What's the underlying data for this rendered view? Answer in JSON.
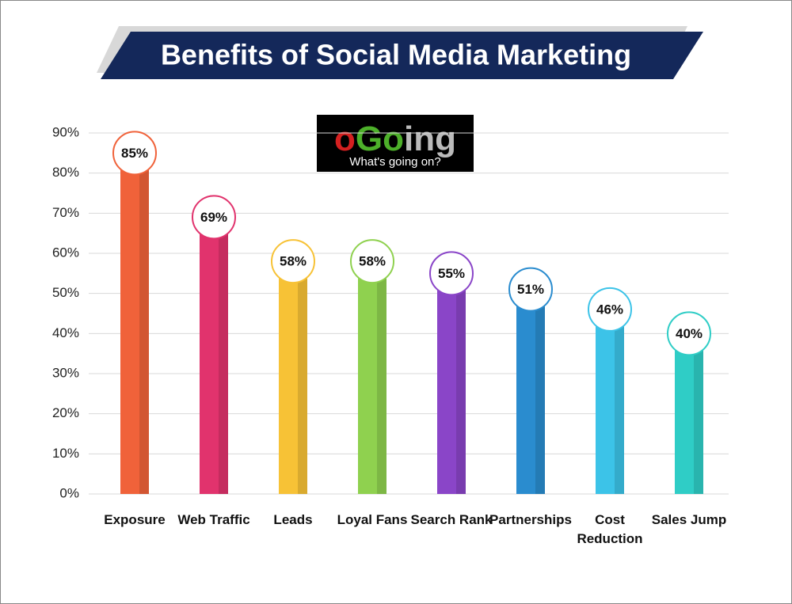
{
  "chart_data": {
    "type": "bar",
    "title": "Benefits of Social Media Marketing",
    "categories": [
      "Exposure",
      "Web Traffic",
      "Leads",
      "Loyal Fans",
      "Search Rank",
      "Partnerships",
      "Cost Reduction",
      "Sales Jump"
    ],
    "values": [
      85,
      69,
      58,
      58,
      55,
      51,
      46,
      40
    ],
    "value_labels": [
      "85%",
      "69%",
      "58%",
      "58%",
      "55%",
      "51%",
      "46%",
      "40%"
    ],
    "colors": [
      "#f0623a",
      "#e1336d",
      "#f7c236",
      "#8fd14f",
      "#8a45c8",
      "#2a8ccf",
      "#3cc3e8",
      "#2fcdc6"
    ],
    "ylim": [
      0,
      90
    ],
    "yticks": [
      {
        "value": 0,
        "label": "0%"
      },
      {
        "value": 10,
        "label": "10%"
      },
      {
        "value": 20,
        "label": "20%"
      },
      {
        "value": 30,
        "label": "30%"
      },
      {
        "value": 40,
        "label": "40%"
      },
      {
        "value": 50,
        "label": "50%"
      },
      {
        "value": 60,
        "label": "60%"
      },
      {
        "value": 70,
        "label": "70%"
      },
      {
        "value": 80,
        "label": "80%"
      },
      {
        "value": 90,
        "label": "90%"
      }
    ],
    "grid": true
  },
  "logo": {
    "o": "o",
    "go": "Go",
    "ing": "ing",
    "tagline": "What's going on?"
  }
}
